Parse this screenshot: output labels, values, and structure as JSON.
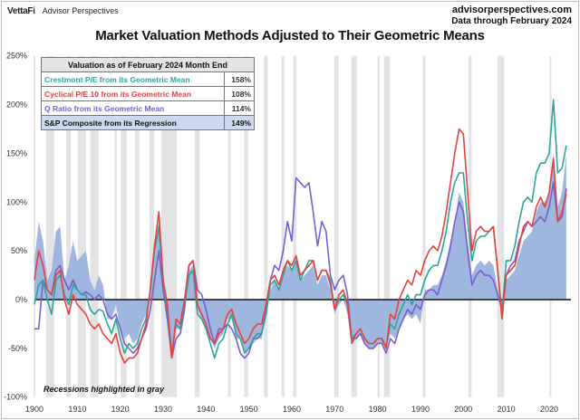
{
  "header": {
    "brand": "VettaFi",
    "brand_sub": "Advisor Perspectives",
    "site": "advisorperspectives.com",
    "data_through": "Data through February 2024"
  },
  "note": "Recessions highlighted in gray",
  "legend": {
    "title": "Valuation as of February 2024 Month End",
    "rows": [
      {
        "label": "Crestmont P/E from its Geometric Mean",
        "value": "158%"
      },
      {
        "label": "Cyclical P/E 10 from its Geometric Mean",
        "value": "108%"
      },
      {
        "label": "Q Ratio from its Geometric Mean",
        "value": "114%"
      },
      {
        "label": "S&P Composite from its Regression",
        "value": "149%"
      }
    ]
  },
  "chart_data": {
    "type": "line",
    "title": "Market Valuation Methods Adjusted to Their Geometric Means",
    "xlabel": "",
    "ylabel": "",
    "xlim": [
      1900,
      2024
    ],
    "ylim": [
      -100,
      250
    ],
    "xticks": [
      "1900",
      "1910",
      "1920",
      "1930",
      "1940",
      "1950",
      "1960",
      "1970",
      "1980",
      "1990",
      "2000",
      "2010",
      "2020"
    ],
    "yticks": [
      "250%",
      "200%",
      "150%",
      "100%",
      "50%",
      "0%",
      "-50%",
      "-100%"
    ],
    "grid": false,
    "recessions": [
      [
        1902.7,
        1904.6
      ],
      [
        1907.4,
        1908.5
      ],
      [
        1910.1,
        1912
      ],
      [
        1913,
        1914.9
      ],
      [
        1918.7,
        1919.2
      ],
      [
        1920.1,
        1921.5
      ],
      [
        1923.4,
        1924.5
      ],
      [
        1926.8,
        1927.9
      ],
      [
        1929.6,
        1933.2
      ],
      [
        1937.4,
        1938.5
      ],
      [
        1945.1,
        1945.8
      ],
      [
        1948.9,
        1949.8
      ],
      [
        1953.5,
        1954.4
      ],
      [
        1957.6,
        1958.3
      ],
      [
        1960.3,
        1961.1
      ],
      [
        1969.9,
        1970.9
      ],
      [
        1973.9,
        1975.2
      ],
      [
        1980,
        1980.5
      ],
      [
        1981.5,
        1982.9
      ],
      [
        1990.5,
        1991.2
      ],
      [
        2001.2,
        2001.9
      ],
      [
        2007.9,
        2009.5
      ],
      [
        2020.1,
        2020.4
      ]
    ],
    "x_start": 1900,
    "series": [
      {
        "name": "Crestmont P/E from its Geometric Mean",
        "color": "#2ba69b",
        "kind": "line",
        "values": [
          -5,
          15,
          20,
          0,
          -15,
          20,
          25,
          5,
          -5,
          15,
          10,
          5,
          5,
          -10,
          -15,
          -10,
          -12,
          -25,
          -35,
          -20,
          -40,
          -55,
          -45,
          -50,
          -45,
          -30,
          -20,
          10,
          50,
          75,
          20,
          -10,
          -55,
          -25,
          -30,
          -5,
          25,
          30,
          -15,
          -20,
          -30,
          -45,
          -60,
          -45,
          -40,
          -25,
          -15,
          -35,
          -40,
          -55,
          -50,
          -40,
          -35,
          -35,
          -15,
          15,
          20,
          10,
          25,
          40,
          30,
          40,
          20,
          30,
          40,
          40,
          20,
          30,
          30,
          20,
          -10,
          0,
          5,
          -5,
          -40,
          -35,
          -30,
          -40,
          -45,
          -45,
          -40,
          -40,
          -48,
          -25,
          -30,
          -15,
          -5,
          5,
          -5,
          5,
          5,
          20,
          30,
          35,
          35,
          50,
          70,
          100,
          120,
          130,
          130,
          80,
          40,
          60,
          65,
          65,
          70,
          75,
          30,
          -15,
          40,
          40,
          55,
          80,
          100,
          105,
          100,
          130,
          140,
          140,
          150,
          205,
          130,
          135,
          158
        ]
      },
      {
        "name": "Cyclical P/E 10 from its Geometric Mean",
        "color": "#e8403f",
        "kind": "line",
        "values": [
          20,
          50,
          35,
          10,
          5,
          25,
          30,
          0,
          -15,
          5,
          -5,
          -10,
          -15,
          -25,
          -30,
          -25,
          -35,
          -40,
          -45,
          -35,
          -55,
          -65,
          -60,
          -60,
          -55,
          -40,
          -25,
          10,
          55,
          90,
          20,
          -5,
          -60,
          -20,
          -25,
          0,
          35,
          40,
          -5,
          -15,
          -25,
          -40,
          -45,
          -35,
          -30,
          -15,
          -10,
          -25,
          -35,
          -45,
          -40,
          -30,
          -25,
          -25,
          -5,
          20,
          25,
          15,
          30,
          40,
          35,
          45,
          25,
          30,
          35,
          40,
          20,
          30,
          30,
          15,
          -10,
          5,
          10,
          -5,
          -45,
          -35,
          -30,
          -40,
          -45,
          -45,
          -40,
          -40,
          -50,
          -15,
          -20,
          0,
          10,
          20,
          15,
          30,
          25,
          40,
          50,
          55,
          50,
          65,
          90,
          120,
          150,
          175,
          170,
          110,
          50,
          70,
          75,
          70,
          70,
          75,
          30,
          -20,
          25,
          30,
          35,
          55,
          75,
          80,
          75,
          95,
          105,
          95,
          110,
          145,
          80,
          90,
          108
        ]
      },
      {
        "name": "Q Ratio from its Geometric Mean",
        "color": "#7a5fca",
        "kind": "line",
        "values": [
          -30,
          -30,
          20,
          10,
          5,
          30,
          35,
          20,
          10,
          20,
          10,
          5,
          8,
          5,
          0,
          5,
          0,
          -15,
          -20,
          -15,
          -30,
          -45,
          -50,
          -55,
          -50,
          -40,
          -30,
          -10,
          20,
          50,
          10,
          -20,
          -60,
          -40,
          -35,
          -10,
          35,
          40,
          10,
          5,
          -10,
          -30,
          -45,
          -30,
          -30,
          -25,
          -30,
          -40,
          -55,
          -60,
          -55,
          -40,
          -40,
          -35,
          -10,
          20,
          35,
          30,
          50,
          80,
          60,
          125,
          120,
          115,
          120,
          90,
          55,
          80,
          70,
          25,
          10,
          20,
          25,
          5,
          -40,
          -40,
          -35,
          -45,
          -50,
          -50,
          -45,
          -45,
          -55,
          -40,
          -45,
          -30,
          -20,
          -10,
          -15,
          -5,
          -10,
          5,
          10,
          10,
          5,
          20,
          35,
          55,
          80,
          100,
          90,
          50,
          15,
          25,
          30,
          25,
          25,
          20,
          5,
          -10,
          25,
          35,
          40,
          60,
          70,
          80,
          75,
          80,
          85,
          80,
          95,
          120,
          80,
          85,
          114
        ]
      },
      {
        "name": "S&P Composite from its Regression",
        "color": "#9fb6df",
        "kind": "area",
        "values": [
          40,
          80,
          60,
          20,
          30,
          70,
          75,
          20,
          35,
          60,
          40,
          45,
          50,
          20,
          10,
          25,
          15,
          -20,
          -20,
          -5,
          -30,
          -40,
          -35,
          -45,
          -40,
          -25,
          -15,
          10,
          45,
          80,
          20,
          -20,
          -60,
          -30,
          -30,
          -5,
          30,
          35,
          -10,
          -20,
          -30,
          -40,
          -50,
          -40,
          -35,
          -20,
          -20,
          -40,
          -40,
          -55,
          -50,
          -45,
          -40,
          -40,
          -15,
          10,
          20,
          10,
          25,
          35,
          30,
          40,
          20,
          25,
          30,
          35,
          15,
          25,
          25,
          10,
          -15,
          -5,
          0,
          -15,
          -45,
          -40,
          -35,
          -45,
          -50,
          -50,
          -45,
          -45,
          -50,
          -35,
          -40,
          -30,
          -20,
          -15,
          -20,
          -15,
          -25,
          10,
          10,
          15,
          15,
          25,
          40,
          60,
          80,
          110,
          100,
          60,
          25,
          35,
          40,
          35,
          40,
          35,
          10,
          -15,
          20,
          25,
          30,
          45,
          60,
          65,
          70,
          90,
          100,
          100,
          110,
          150,
          95,
          110,
          149
        ]
      }
    ]
  }
}
